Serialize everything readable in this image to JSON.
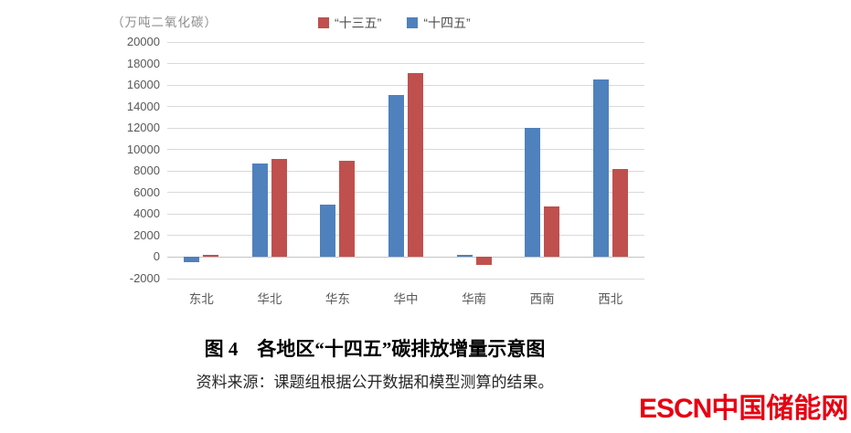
{
  "chart": {
    "units_label": "（万吨二氧化碳）",
    "legend": [
      {
        "label": "“十三五”",
        "color": "#C0504D"
      },
      {
        "label": "“十四五”",
        "color": "#4F81BD"
      }
    ]
  },
  "chart_data": {
    "type": "bar",
    "title": "各地区“十四五”碳排放增量示意图",
    "units": "万吨二氧化碳",
    "categories": [
      "东北",
      "华北",
      "华东",
      "华中",
      "华南",
      "西南",
      "西北"
    ],
    "series": [
      {
        "name": "“十三五”",
        "color": "#C0504D",
        "bar_position": "right",
        "values": [
          200,
          9100,
          9000,
          17100,
          -700,
          4700,
          8200
        ]
      },
      {
        "name": "“十四五”",
        "color": "#4F81BD",
        "bar_position": "left",
        "values": [
          -500,
          8700,
          4900,
          15100,
          200,
          12000,
          16500
        ]
      }
    ],
    "ylim": [
      -2000,
      20000
    ],
    "ytick_step": 2000,
    "yticks": [
      -2000,
      0,
      2000,
      4000,
      6000,
      8000,
      10000,
      12000,
      14000,
      16000,
      18000,
      20000
    ],
    "grid": true,
    "legend_position": "top"
  },
  "caption": {
    "title": "图 4　各地区“十四五”碳排放增量示意图",
    "source": "资料来源：课题组根据公开数据和模型测算的结果。"
  },
  "logo": {
    "text_en": "ESCN",
    "text_cn": "中国储能网",
    "color": "#E60012"
  },
  "colors": {
    "gridline": "#d9d9d9",
    "axis_text": "#595959",
    "series_13_5": "#C0504D",
    "series_14_5": "#4F81BD"
  }
}
